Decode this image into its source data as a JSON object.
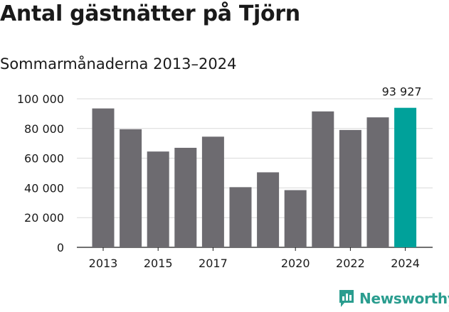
{
  "header": {
    "title": "Antal gästnätter på Tjörn",
    "subtitle": "Sommarmånaderna 2013–2024"
  },
  "brand": {
    "name": "Newsworthy",
    "icon": "newsworthy-chart-icon",
    "color": "#2a9d8f"
  },
  "colors": {
    "bar": "#6d6b70",
    "highlight": "#00a19a"
  },
  "chart_data": {
    "type": "bar",
    "title": "Antal gästnätter på Tjörn",
    "subtitle": "Sommarmånaderna 2013–2024",
    "categories": [
      "2013",
      "2014",
      "2015",
      "2016",
      "2017",
      "2018",
      "2019",
      "2020",
      "2021",
      "2022",
      "2023",
      "2024"
    ],
    "values": [
      93500,
      79500,
      64500,
      67000,
      74500,
      40500,
      50500,
      38500,
      91500,
      79000,
      87500,
      93927
    ],
    "x_tick_labels": [
      "2013",
      "2015",
      "2017",
      "2020",
      "2022",
      "2024"
    ],
    "y_tick_labels": [
      "0",
      "20 000",
      "40 000",
      "60 000",
      "80 000",
      "100 000"
    ],
    "y_ticks": [
      0,
      20000,
      40000,
      60000,
      80000,
      100000
    ],
    "ylim": [
      0,
      100000
    ],
    "grid": true,
    "highlight_category": "2024",
    "data_labels": [
      {
        "category": "2024",
        "text": "93 927"
      }
    ]
  }
}
